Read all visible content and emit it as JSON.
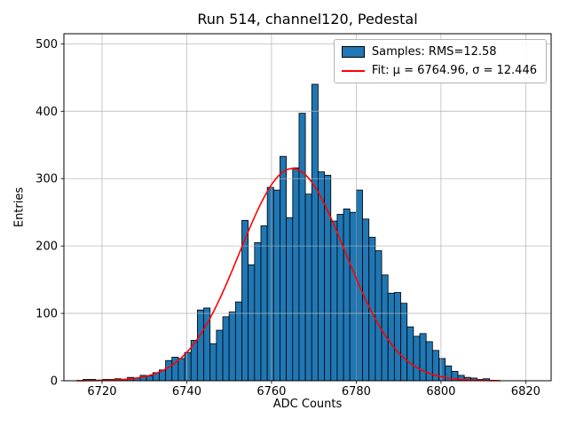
{
  "chart_data": {
    "type": "bar",
    "subtype": "histogram",
    "title": "Run 514, channel120, Pedestal",
    "xlabel": "ADC Counts",
    "ylabel": "Entries",
    "xlim": [
      6711,
      6826
    ],
    "ylim": [
      0,
      515
    ],
    "xticks": [
      6720,
      6740,
      6760,
      6780,
      6800,
      6820
    ],
    "yticks": [
      0,
      100,
      200,
      300,
      400,
      500
    ],
    "grid": true,
    "colors": {
      "bar_fill": "#1f77b4",
      "bar_edge": "#000000",
      "fit_line": "#ff0000",
      "grid_line": "#b0b0b0",
      "axes": "#000000"
    },
    "legend": {
      "position": "upper right",
      "entries": [
        {
          "label": "Samples: RMS=12.58",
          "marker": "patch",
          "color": "#1f77b4"
        },
        {
          "label": "Fit: μ = 6764.96, σ = 12.446",
          "marker": "line",
          "color": "#ff0000"
        }
      ]
    },
    "stats": {
      "rms": 12.58,
      "mu": 6764.96,
      "sigma": 12.446
    },
    "histogram": {
      "bin_start": 6715.5,
      "bin_width": 1.5,
      "counts": [
        2,
        2,
        1,
        2,
        2,
        3,
        2,
        5,
        4,
        8,
        7,
        12,
        16,
        30,
        35,
        33,
        42,
        60,
        105,
        108,
        55,
        75,
        95,
        102,
        117,
        238,
        172,
        205,
        230,
        287,
        283,
        333,
        242,
        316,
        397,
        277,
        440,
        310,
        305,
        237,
        247,
        255,
        250,
        283,
        240,
        213,
        193,
        157,
        130,
        131,
        115,
        80,
        66,
        70,
        58,
        45,
        33,
        22,
        14,
        8,
        5,
        4,
        2,
        3
      ]
    },
    "fit": {
      "mu": 6764.96,
      "sigma": 12.446,
      "amplitude": 315,
      "x_range": [
        6714,
        6814
      ]
    }
  }
}
